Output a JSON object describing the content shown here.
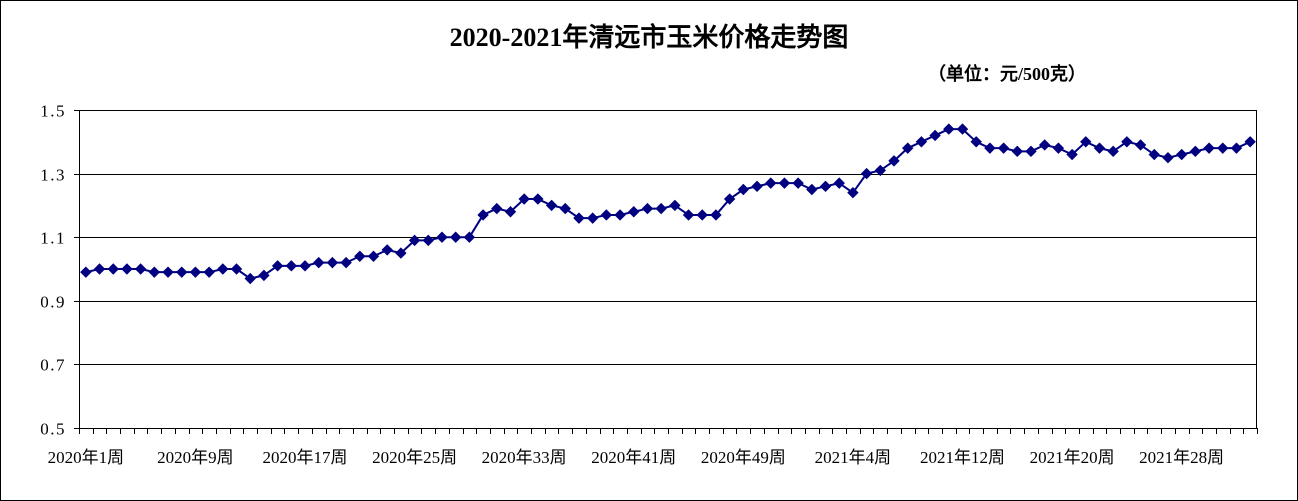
{
  "chart_data": {
    "type": "line",
    "title": "2020-2021年清远市玉米价格走势图",
    "unit_label": "（单位：元/500克）",
    "ylim": [
      0.5,
      1.5
    ],
    "yticks": [
      1.5,
      1.3,
      1.1,
      0.9,
      0.7,
      0.5
    ],
    "grid": true,
    "legend": "none",
    "x_tick_labels": [
      "2020年1周",
      "2020年9周",
      "2020年17周",
      "2020年25周",
      "2020年33周",
      "2020年41周",
      "2020年49周",
      "2021年4周",
      "2021年12周",
      "2021年20周",
      "2021年28周"
    ],
    "series": [
      {
        "color": "#000080",
        "marker": "diamond",
        "values": [
          0.99,
          1.0,
          1.0,
          1.0,
          1.0,
          0.99,
          0.99,
          0.99,
          0.99,
          0.99,
          1.0,
          1.0,
          0.97,
          0.98,
          1.01,
          1.01,
          1.01,
          1.02,
          1.02,
          1.02,
          1.04,
          1.04,
          1.06,
          1.05,
          1.09,
          1.09,
          1.1,
          1.1,
          1.1,
          1.17,
          1.19,
          1.18,
          1.22,
          1.22,
          1.2,
          1.19,
          1.16,
          1.16,
          1.17,
          1.17,
          1.18,
          1.19,
          1.19,
          1.2,
          1.17,
          1.17,
          1.17,
          1.22,
          1.25,
          1.26,
          1.27,
          1.27,
          1.27,
          1.25,
          1.26,
          1.27,
          1.24,
          1.3,
          1.31,
          1.34,
          1.38,
          1.4,
          1.42,
          1.44,
          1.44,
          1.4,
          1.38,
          1.38,
          1.37,
          1.37,
          1.39,
          1.38,
          1.36,
          1.4,
          1.38,
          1.37,
          1.4,
          1.39,
          1.36,
          1.35,
          1.36,
          1.37,
          1.38,
          1.38,
          1.38,
          1.4
        ]
      }
    ],
    "colors": {
      "series": "#000080",
      "grid": "#000000",
      "background": "#ffffff"
    }
  }
}
